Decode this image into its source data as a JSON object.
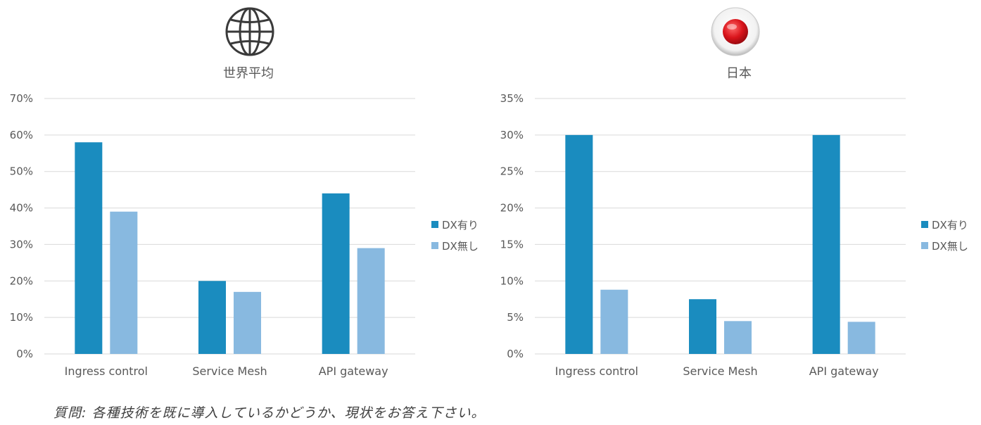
{
  "colors": {
    "dx_with": "#1a8cbf",
    "dx_without": "#88b9e0",
    "grid": "#d9d9d9",
    "text": "#595959"
  },
  "icons": {
    "world": "globe-icon",
    "japan": "japan-flag-icon"
  },
  "chart_data": [
    {
      "type": "bar",
      "title": "世界平均",
      "categories": [
        "Ingress control",
        "Service Mesh",
        "API gateway"
      ],
      "series": [
        {
          "name": "DX有り",
          "values": [
            58,
            20,
            44
          ]
        },
        {
          "name": "DX無し",
          "values": [
            39,
            17,
            29
          ]
        }
      ],
      "ylim": [
        0,
        70
      ],
      "yticks": [
        "0%",
        "10%",
        "20%",
        "30%",
        "40%",
        "50%",
        "60%",
        "70%"
      ],
      "grid": true,
      "legend": "right"
    },
    {
      "type": "bar",
      "title": "日本",
      "categories": [
        "Ingress control",
        "Service Mesh",
        "API gateway"
      ],
      "series": [
        {
          "name": "DX有り",
          "values": [
            30,
            7.5,
            30
          ]
        },
        {
          "name": "DX無し",
          "values": [
            8.8,
            4.5,
            4.4
          ]
        }
      ],
      "ylim": [
        0,
        35
      ],
      "yticks": [
        "0%",
        "5%",
        "10%",
        "15%",
        "20%",
        "25%",
        "30%",
        "35%"
      ],
      "grid": true,
      "legend": "right"
    }
  ],
  "footnote": "質問: 各種技術を既に導入しているかどうか、現状をお答え下さい。"
}
